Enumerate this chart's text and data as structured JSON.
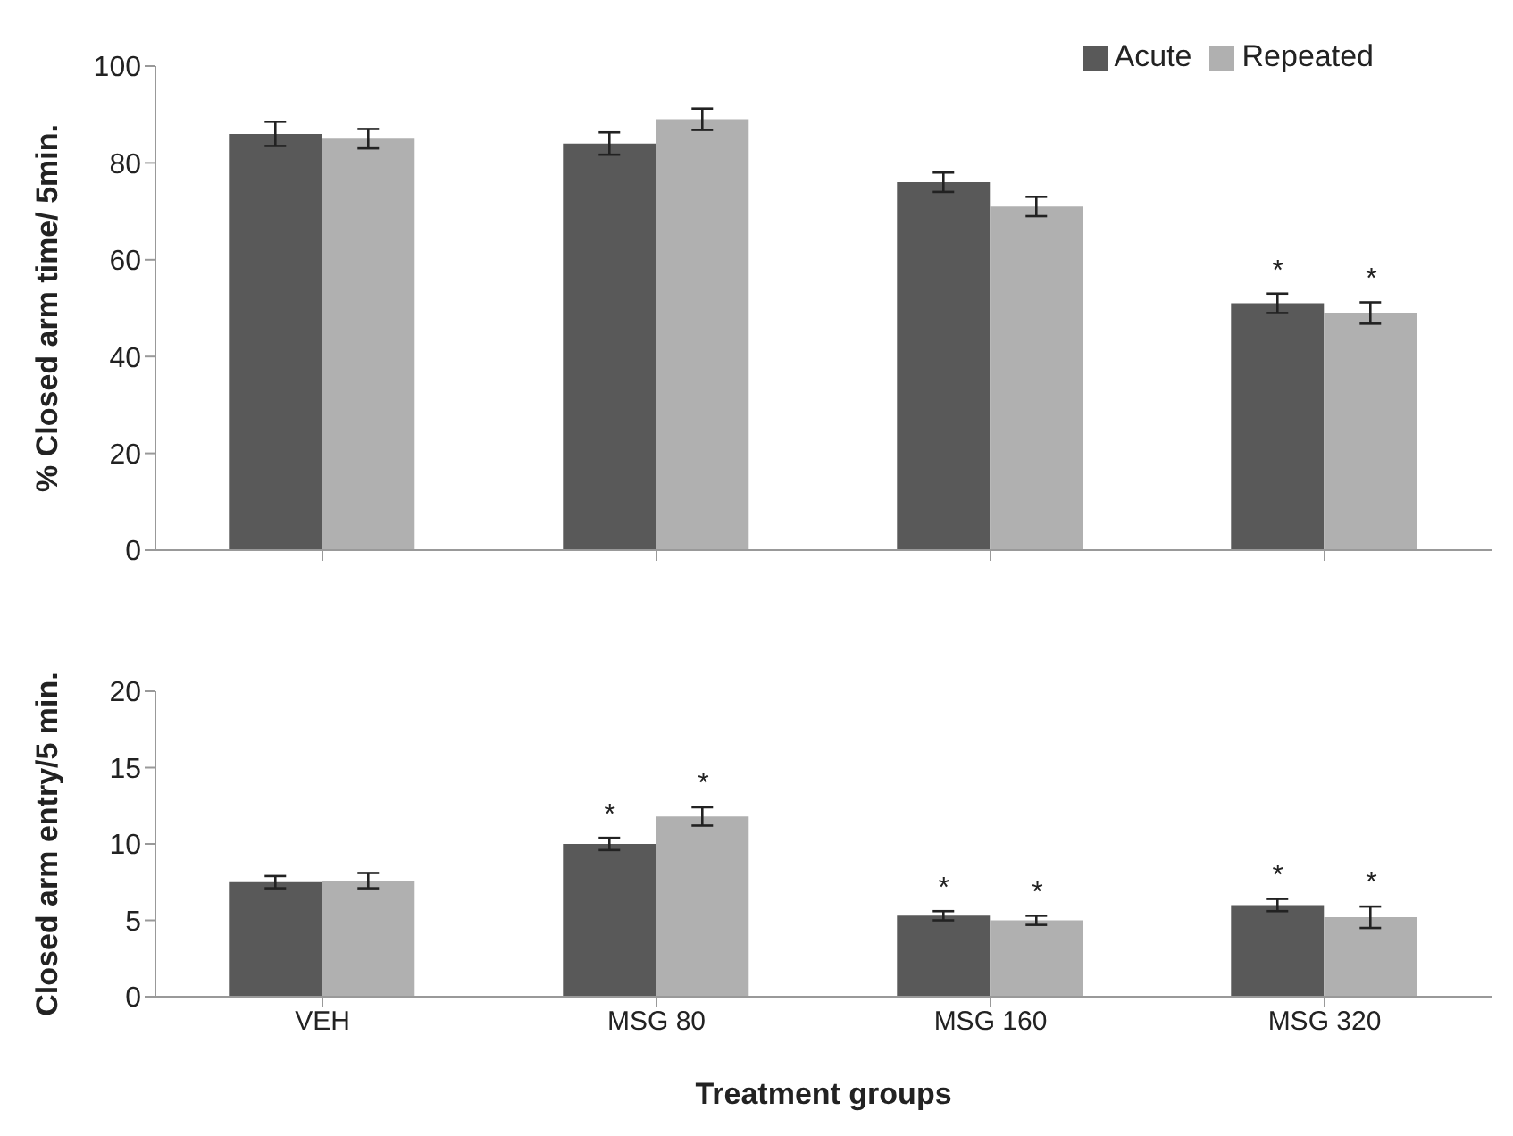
{
  "chart_data": [
    {
      "type": "bar",
      "ylabel": "% Closed arm  time/ 5min.",
      "categories": [
        "VEH",
        "MSG 80",
        "MSG 160",
        "MSG 320"
      ],
      "tick_labels": "y",
      "ylim": [
        0,
        100
      ],
      "yticks": [
        0,
        20,
        40,
        60,
        80,
        100
      ],
      "legend": "top right",
      "series": [
        {
          "name": "Acute",
          "color": "#595959",
          "values": [
            86,
            84,
            76,
            51
          ],
          "errors": [
            2.5,
            2.3,
            2,
            2
          ]
        },
        {
          "name": "Repeated",
          "color": "#b0b0b0",
          "values": [
            85,
            89,
            71,
            49
          ],
          "errors": [
            2,
            2.2,
            2,
            2.2
          ]
        }
      ],
      "annotations": [
        {
          "text": "*",
          "x": "MSG 320",
          "y": 51
        },
        {
          "text": "*",
          "x": "MSG 320",
          "y": 49
        }
      ]
    },
    {
      "type": "bar",
      "ylabel": "Closed arm entry/5 min.",
      "xlabel": "Treatment groups",
      "categories": [
        "VEH",
        "MSG 80",
        "MSG 160",
        "MSG 320"
      ],
      "ylim": [
        0,
        20
      ],
      "yticks": [
        0,
        5,
        10,
        15,
        20
      ],
      "series": [
        {
          "color": "#595959",
          "values": [
            7.5,
            10,
            5.3,
            6.0
          ],
          "errors": [
            0.4,
            0.4,
            0.3,
            0.4
          ]
        },
        {
          "color": "#b0b0b0",
          "values": [
            7.6,
            11.8,
            5.0,
            5.2
          ],
          "errors": [
            0.5,
            0.6,
            0.3,
            0.7
          ]
        }
      ],
      "annotations": [
        {
          "text": "*",
          "x": "MSG 80",
          "y": 10
        },
        {
          "text": "*",
          "x": "MSG 80",
          "y": 11.8
        },
        {
          "text": "*",
          "x": "MSG 160",
          "y": 5.3
        },
        {
          "text": "*",
          "x": "MSG 160",
          "y": 5.0
        },
        {
          "text": "*",
          "x": "MSG 320",
          "y": 6.0
        },
        {
          "text": "*",
          "x": "MSG 320",
          "y": 5.2
        }
      ]
    }
  ]
}
